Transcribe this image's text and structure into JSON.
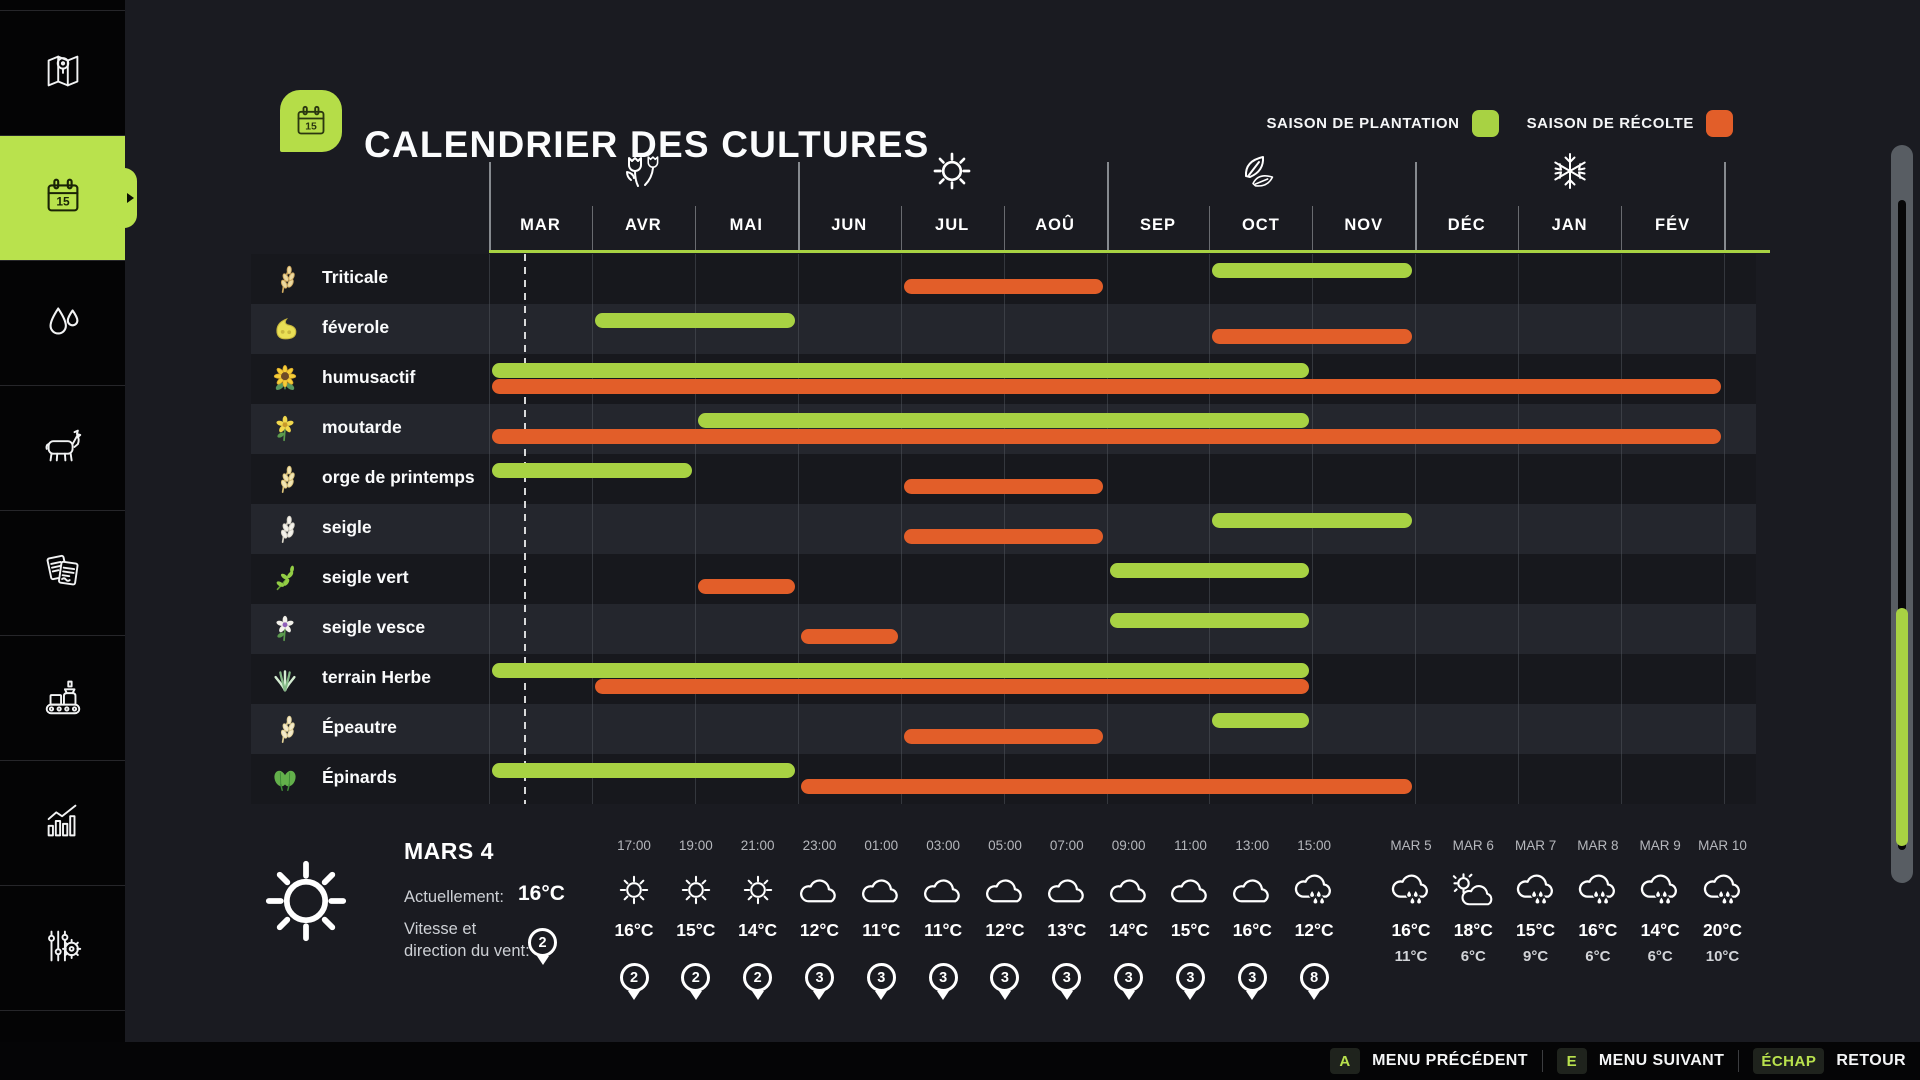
{
  "header": {
    "title": "CALENDRIER DES CULTURES",
    "legend": {
      "planting": "SAISON DE PLANTATION",
      "harvest": "SAISON DE RÉCOLTE"
    }
  },
  "icons": {
    "calendar_day": "15"
  },
  "colors": {
    "planting_green": "#a8d243",
    "harvest_orange": "#e25e29",
    "sidebar_active": "#b9e24d",
    "background": "#1a1b21",
    "row_dark": "#17181d",
    "row_light": "#24262d"
  },
  "sidebar": {
    "items": [
      {
        "name": "map",
        "active": false
      },
      {
        "name": "calendar",
        "active": true
      },
      {
        "name": "water",
        "active": false
      },
      {
        "name": "animals",
        "active": false
      },
      {
        "name": "contracts",
        "active": false
      },
      {
        "name": "production",
        "active": false
      },
      {
        "name": "statistics",
        "active": false
      },
      {
        "name": "settings",
        "active": false
      }
    ]
  },
  "chart_data": {
    "type": "gantt",
    "title": "CALENDRIER DES CULTURES",
    "months": [
      "MAR",
      "AVR",
      "MAI",
      "JUN",
      "JUL",
      "AOÛ",
      "SEP",
      "OCT",
      "NOV",
      "DÉC",
      "JAN",
      "FÉV"
    ],
    "seasons": [
      {
        "name": "spring",
        "span": [
          0,
          2
        ]
      },
      {
        "name": "summer",
        "span": [
          3,
          5
        ]
      },
      {
        "name": "autumn",
        "span": [
          6,
          8
        ]
      },
      {
        "name": "winter",
        "span": [
          9,
          11
        ]
      }
    ],
    "current_date_marker": "début mars",
    "legend": {
      "plant": "SAISON DE PLANTATION",
      "harvest": "SAISON DE RÉCOLTE"
    },
    "crops": [
      {
        "name": "Triticale",
        "icon": "wheat",
        "icon_colors": [
          "#ecd9a0",
          "#cfa960"
        ],
        "plant": [
          7,
          8
        ],
        "plant_months": "OCT–NOV",
        "harvest": [
          4,
          5
        ],
        "harvest_months": "JUL–AOÛ"
      },
      {
        "name": "féverole",
        "icon": "bean",
        "icon_colors": [
          "#e9df55",
          "#c9b83e"
        ],
        "plant": [
          1,
          2
        ],
        "plant_months": "AVR–MAI",
        "harvest": [
          7,
          8
        ],
        "harvest_months": "OCT–NOV"
      },
      {
        "name": "humusactif",
        "icon": "sunflower",
        "icon_colors": [
          "#f5cd37",
          "#6e4b27"
        ],
        "plant": [
          0,
          7
        ],
        "plant_months": "MAR–OCT",
        "harvest": [
          0,
          11
        ],
        "harvest_months": "MAR–FÉV"
      },
      {
        "name": "moutarde",
        "icon": "flower",
        "icon_colors": [
          "#f2d84e",
          "#c9992b"
        ],
        "plant": [
          2,
          7
        ],
        "plant_months": "MAI–OCT",
        "harvest": [
          0,
          11
        ],
        "harvest_months": "MAR–FÉV"
      },
      {
        "name": "orge de printemps",
        "icon": "wheat",
        "icon_colors": [
          "#f1e5b4",
          "#d9c078"
        ],
        "plant": [
          0,
          1
        ],
        "plant_months": "MAR–AVR",
        "harvest": [
          4,
          5
        ],
        "harvest_months": "JUL–AOÛ"
      },
      {
        "name": "seigle",
        "icon": "wheat",
        "icon_colors": [
          "#f4f2ec",
          "#d8d4c8"
        ],
        "plant": [
          7,
          8
        ],
        "plant_months": "OCT–NOV",
        "harvest": [
          4,
          5
        ],
        "harvest_months": "JUL–AOÛ"
      },
      {
        "name": "seigle vert",
        "icon": "branch",
        "icon_colors": [
          "#93cd45",
          "#67a235"
        ],
        "plant": [
          6,
          7
        ],
        "plant_months": "SEP–OCT",
        "harvest": [
          2,
          2
        ],
        "harvest_months": "MAI"
      },
      {
        "name": "seigle vesce",
        "icon": "flower",
        "icon_colors": [
          "#f3f1eb",
          "#8f5fb8"
        ],
        "plant": [
          6,
          7
        ],
        "plant_months": "SEP–OCT",
        "harvest": [
          3,
          3
        ],
        "harvest_months": "JUN"
      },
      {
        "name": "terrain Herbe",
        "icon": "grass",
        "icon_colors": [
          "#d4ecd2",
          "#84b886"
        ],
        "plant": [
          0,
          7
        ],
        "plant_months": "MAR–OCT",
        "harvest": [
          1,
          7
        ],
        "harvest_months": "AVR–OCT"
      },
      {
        "name": "Épeautre",
        "icon": "wheat",
        "icon_colors": [
          "#f3eacb",
          "#e0cf96"
        ],
        "plant": [
          7,
          7
        ],
        "plant_months": "OCT",
        "harvest": [
          4,
          5
        ],
        "harvest_months": "JUL–AOÛ"
      },
      {
        "name": "Épinards",
        "icon": "spinach",
        "icon_colors": [
          "#63b04b",
          "#3f8a37"
        ],
        "plant": [
          0,
          2
        ],
        "plant_months": "MAR–MAI",
        "harvest": [
          3,
          8
        ],
        "harvest_months": "JUN–NOV"
      }
    ]
  },
  "weather": {
    "current": {
      "date": "MARS 4",
      "now_label": "Actuellement:",
      "temp": "16°C",
      "wind_label": "Vitesse et direction du vent:",
      "wind": "2",
      "icon": "sun"
    },
    "hourly": [
      {
        "time": "17:00",
        "icon": "sun",
        "temp": "16°C",
        "wind": "2"
      },
      {
        "time": "19:00",
        "icon": "sun",
        "temp": "15°C",
        "wind": "2"
      },
      {
        "time": "21:00",
        "icon": "sun",
        "temp": "14°C",
        "wind": "2"
      },
      {
        "time": "23:00",
        "icon": "cloud",
        "temp": "12°C",
        "wind": "3"
      },
      {
        "time": "01:00",
        "icon": "cloud",
        "temp": "11°C",
        "wind": "3"
      },
      {
        "time": "03:00",
        "icon": "cloud",
        "temp": "11°C",
        "wind": "3"
      },
      {
        "time": "05:00",
        "icon": "cloud",
        "temp": "12°C",
        "wind": "3"
      },
      {
        "time": "07:00",
        "icon": "cloud",
        "temp": "13°C",
        "wind": "3"
      },
      {
        "time": "09:00",
        "icon": "cloud",
        "temp": "14°C",
        "wind": "3"
      },
      {
        "time": "11:00",
        "icon": "cloud",
        "temp": "15°C",
        "wind": "3"
      },
      {
        "time": "13:00",
        "icon": "cloud",
        "temp": "16°C",
        "wind": "3"
      },
      {
        "time": "15:00",
        "icon": "cloud-rain",
        "temp": "12°C",
        "wind": "8"
      }
    ],
    "daily": [
      {
        "day": "MAR 5",
        "icon": "cloud-rain",
        "high": "16°C",
        "low": "11°C"
      },
      {
        "day": "MAR 6",
        "icon": "sun-cloud",
        "high": "18°C",
        "low": "6°C"
      },
      {
        "day": "MAR 7",
        "icon": "cloud-rain",
        "high": "15°C",
        "low": "9°C"
      },
      {
        "day": "MAR 8",
        "icon": "cloud-rain",
        "high": "16°C",
        "low": "6°C"
      },
      {
        "day": "MAR 9",
        "icon": "cloud-rain",
        "high": "14°C",
        "low": "6°C"
      },
      {
        "day": "MAR 10",
        "icon": "cloud-rain",
        "high": "20°C",
        "low": "10°C"
      }
    ]
  },
  "footer": {
    "hints": [
      {
        "key": "A",
        "label": "MENU PRÉCÉDENT"
      },
      {
        "key": "E",
        "label": "MENU SUIVANT"
      },
      {
        "key": "ÉCHAP",
        "label": "RETOUR"
      }
    ]
  }
}
